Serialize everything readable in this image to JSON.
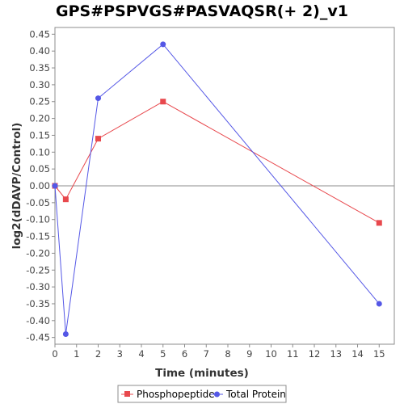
{
  "colors": {
    "phosphopeptide": "#e8484d",
    "total_protein": "#5457e6",
    "zero_line": "#8c8c8c",
    "plot_border": "#8c8c8c"
  },
  "chart_data": {
    "type": "line",
    "title": "GPS#PSPVGS#PASVAQSR(+ 2)_v1",
    "xlabel": "Time (minutes)",
    "ylabel": "log2(dDAVP/Control)",
    "xlim": [
      0,
      15.7
    ],
    "ylim": [
      -0.47,
      0.47
    ],
    "xticks": [
      0,
      1,
      2,
      3,
      4,
      5,
      6,
      7,
      8,
      9,
      10,
      11,
      12,
      13,
      14,
      15
    ],
    "yticks": [
      -0.45,
      -0.4,
      -0.35,
      -0.3,
      -0.25,
      -0.2,
      -0.15,
      -0.1,
      -0.05,
      0.0,
      0.05,
      0.1,
      0.15,
      0.2,
      0.25,
      0.3,
      0.35,
      0.4,
      0.45
    ],
    "ytick_labels": [
      "-0.45",
      "-0.40",
      "-0.35",
      "-0.30",
      "-0.25",
      "-0.20",
      "-0.15",
      "-0.10",
      "-0.05",
      "0.00",
      "0.05",
      "0.10",
      "0.15",
      "0.20",
      "0.25",
      "0.30",
      "0.35",
      "0.40",
      "0.45"
    ],
    "zero_line": true,
    "grid": false,
    "legend_position": "bottom",
    "series": [
      {
        "name": "Phosphopeptide",
        "color": "#e8484d",
        "marker": "square",
        "x": [
          0,
          0.5,
          2,
          5,
          15
        ],
        "y": [
          0.0,
          -0.04,
          0.14,
          0.25,
          -0.11
        ]
      },
      {
        "name": "Total Protein",
        "color": "#5457e6",
        "marker": "circle",
        "x": [
          0,
          0.5,
          2,
          5,
          15
        ],
        "y": [
          0.0,
          -0.44,
          0.26,
          0.42,
          -0.35
        ]
      }
    ]
  }
}
